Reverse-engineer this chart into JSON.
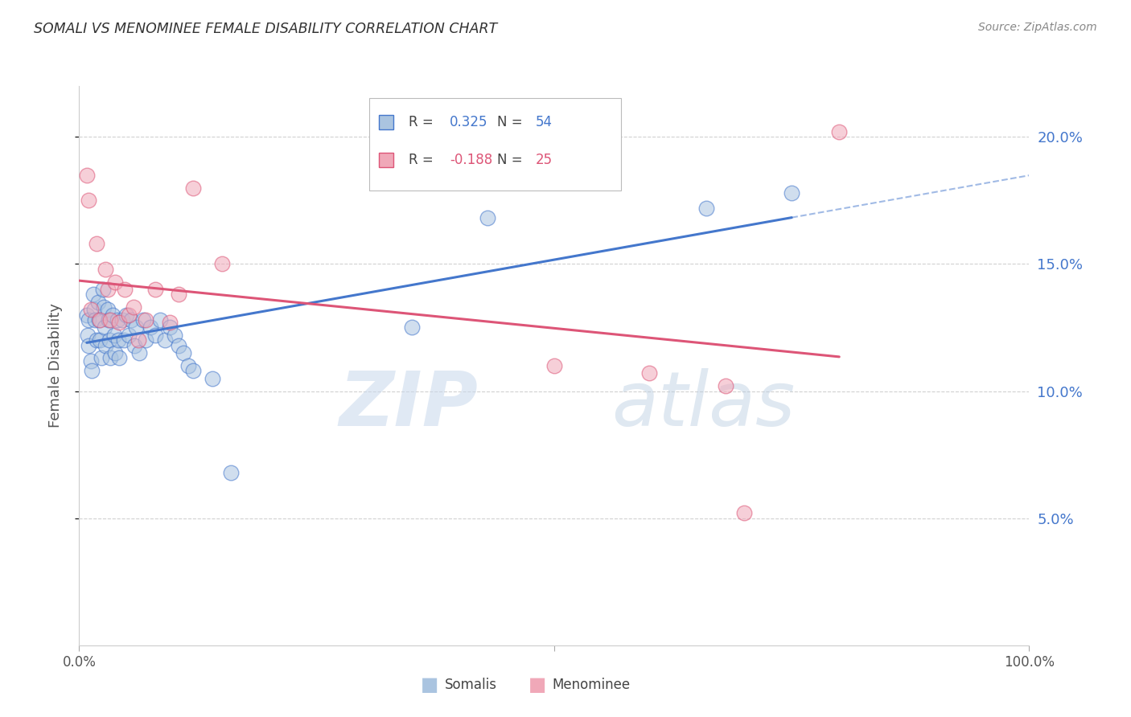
{
  "title": "SOMALI VS MENOMINEE FEMALE DISABILITY CORRELATION CHART",
  "source_text": "Source: ZipAtlas.com",
  "ylabel": "Female Disability",
  "background_color": "#ffffff",
  "grid_color": "#cccccc",
  "watermark_zip": "ZIP",
  "watermark_atlas": "atlas",
  "somali_color": "#aac4e0",
  "menominee_color": "#f0a8b8",
  "somali_line_color": "#4477cc",
  "menominee_line_color": "#dd5577",
  "somali_R": 0.325,
  "somali_N": 54,
  "menominee_R": -0.188,
  "menominee_N": 25,
  "xlim": [
    0.0,
    1.0
  ],
  "ylim": [
    0.0,
    0.22
  ],
  "yticks": [
    0.05,
    0.1,
    0.15,
    0.2
  ],
  "ytick_labels": [
    "5.0%",
    "10.0%",
    "15.0%",
    "20.0%"
  ],
  "somali_x": [
    0.008,
    0.009,
    0.01,
    0.01,
    0.012,
    0.013,
    0.015,
    0.016,
    0.017,
    0.018,
    0.02,
    0.021,
    0.022,
    0.023,
    0.025,
    0.026,
    0.027,
    0.028,
    0.03,
    0.031,
    0.032,
    0.033,
    0.035,
    0.037,
    0.038,
    0.04,
    0.041,
    0.042,
    0.045,
    0.047,
    0.05,
    0.052,
    0.055,
    0.058,
    0.06,
    0.063,
    0.067,
    0.07,
    0.075,
    0.08,
    0.085,
    0.09,
    0.095,
    0.1,
    0.105,
    0.11,
    0.115,
    0.12,
    0.14,
    0.16,
    0.35,
    0.43,
    0.66,
    0.75
  ],
  "somali_y": [
    0.13,
    0.122,
    0.128,
    0.118,
    0.112,
    0.108,
    0.138,
    0.132,
    0.128,
    0.12,
    0.135,
    0.128,
    0.12,
    0.113,
    0.14,
    0.133,
    0.125,
    0.118,
    0.132,
    0.128,
    0.12,
    0.113,
    0.13,
    0.122,
    0.115,
    0.128,
    0.12,
    0.113,
    0.128,
    0.12,
    0.13,
    0.122,
    0.128,
    0.118,
    0.125,
    0.115,
    0.128,
    0.12,
    0.125,
    0.122,
    0.128,
    0.12,
    0.125,
    0.122,
    0.118,
    0.115,
    0.11,
    0.108,
    0.105,
    0.068,
    0.125,
    0.168,
    0.172,
    0.178
  ],
  "menominee_x": [
    0.008,
    0.01,
    0.012,
    0.018,
    0.022,
    0.028,
    0.03,
    0.033,
    0.038,
    0.042,
    0.048,
    0.052,
    0.057,
    0.062,
    0.07,
    0.08,
    0.095,
    0.105,
    0.12,
    0.15,
    0.5,
    0.6,
    0.68,
    0.7,
    0.8
  ],
  "menominee_y": [
    0.185,
    0.175,
    0.132,
    0.158,
    0.128,
    0.148,
    0.14,
    0.128,
    0.143,
    0.127,
    0.14,
    0.13,
    0.133,
    0.12,
    0.128,
    0.14,
    0.127,
    0.138,
    0.18,
    0.15,
    0.11,
    0.107,
    0.102,
    0.052,
    0.202
  ]
}
